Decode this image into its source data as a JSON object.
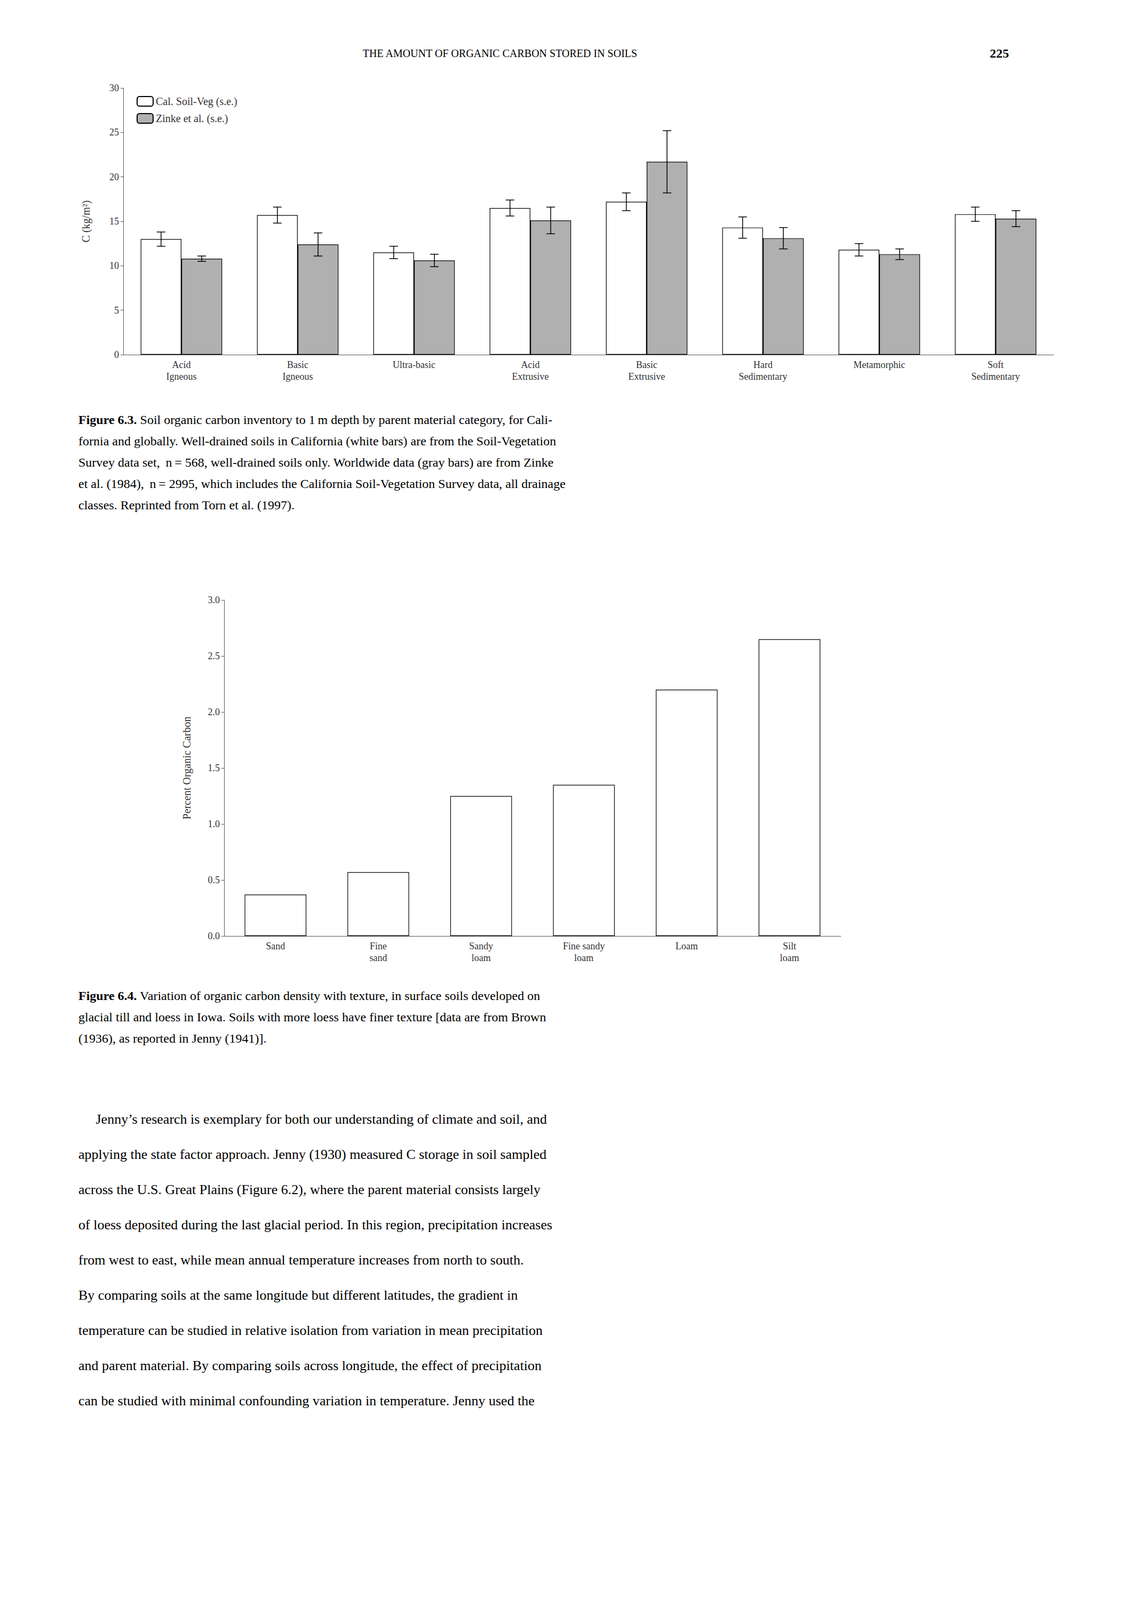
{
  "title": "THE AMOUNT OF ORGANIC CARBON STORED IN SOILS",
  "annotations": [
    "225"
  ],
  "body": [
    "     Jenny’s research is exemplary for both our understanding of climate and soil, and",
    "applying the state factor approach. Jenny (1930) measured C storage in soil sampled",
    "across the U.S. Great Plains (Figure 6.2), where the parent material consists largely",
    "of loess deposited during the last glacial period. In this region, precipitation increases",
    "from west to east, while mean annual temperature increases from north to south.",
    "By comparing soils at the same longitude but different latitudes, the gradient in",
    "temperature can be studied in relative isolation from variation in mean precipitation",
    "and parent material. By comparing soils across longitude, the effect of precipitation",
    "can be studied with minimal confounding variation in temperature. Jenny used the"
  ],
  "chart_data": [
    {
      "type": "bar",
      "categories": [
        "Acid\nIgneous",
        "Basic\nIgneous",
        "Ultra-basic",
        "Acid\nExtrusive",
        "Basic\nExtrusive",
        "Hard\nSedimentary",
        "Metamorphic",
        "Soft\nSedimentary"
      ],
      "series": [
        {
          "name": "Cal. Soil-Veg (s.e.)",
          "color": "#ffffff",
          "values": [
            13.0,
            15.7,
            11.5,
            16.5,
            17.2,
            14.3,
            11.8,
            15.8
          ],
          "errors": [
            0.8,
            0.9,
            0.7,
            0.9,
            1.0,
            1.2,
            0.7,
            0.8
          ]
        },
        {
          "name": "Zinke et al. (s.e.)",
          "color": "#b0b0b0",
          "values": [
            10.8,
            12.4,
            10.6,
            15.1,
            21.7,
            13.1,
            11.3,
            15.3
          ],
          "errors": [
            0.3,
            1.3,
            0.7,
            1.5,
            3.5,
            1.2,
            0.6,
            0.9
          ]
        }
      ],
      "ylabel": "C (kg/m²)",
      "ylim": [
        0,
        30
      ],
      "yticks": [
        0,
        5,
        10,
        15,
        20,
        25,
        30
      ],
      "grid": false,
      "legend": "upper left",
      "caption": [
        "Figure 6.3.",
        "Soil organic carbon inventory to 1 m depth by parent material category, for Cali-",
        "fornia and globally. Well-drained soils in California (white bars) are from the Soil-Vegetation",
        "Survey data set,  n = 568, well-drained soils only. Worldwide data (gray bars) are from Zinke",
        "et al. (1984),  n = 2995, which includes the California Soil-Vegetation Survey data, all drainage",
        "classes. Reprinted from Torn et al. (1997)."
      ]
    },
    {
      "type": "bar",
      "categories": [
        "Sand",
        "Fine\nsand",
        "Sandy\nloam",
        "Fine sandy\nloam",
        "Loam",
        "Silt\nloam"
      ],
      "values": [
        0.37,
        0.57,
        1.25,
        1.35,
        2.2,
        2.65
      ],
      "color": "#ffffff",
      "ylabel": "Percent Organic Carbon",
      "ylim": [
        0.0,
        3.0
      ],
      "yticks": [
        {
          "value": 0.0,
          "label": "0.0"
        },
        {
          "value": 0.5,
          "label": "0.5"
        },
        {
          "value": 1.0,
          "label": "1.0"
        },
        {
          "value": 1.5,
          "label": "1.5"
        },
        {
          "value": 2.0,
          "label": "2.0"
        },
        {
          "value": 2.5,
          "label": "2.5"
        },
        {
          "value": 3.0,
          "label": "3.0"
        }
      ],
      "grid": false,
      "caption": [
        "Figure 6.4.",
        "Variation of organic carbon density with texture, in surface soils developed on",
        "glacial till and loess in Iowa. Soils with more loess have finer texture [data are from Brown",
        "(1936), as reported in Jenny (1941)]."
      ]
    }
  ]
}
